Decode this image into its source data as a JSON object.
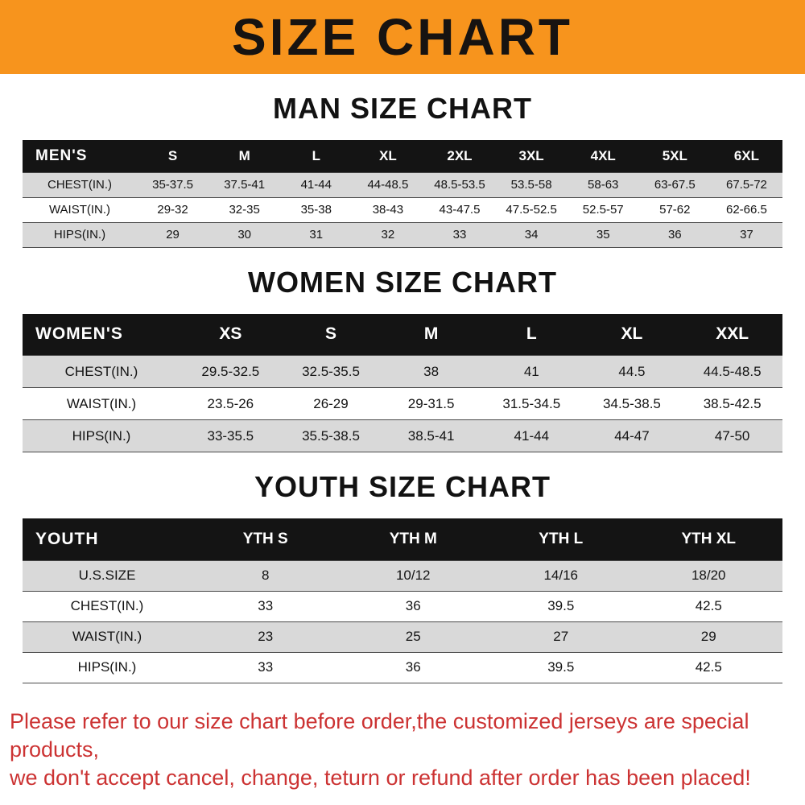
{
  "banner": {
    "title": "SIZE CHART"
  },
  "sections": [
    {
      "heading": "MAN SIZE CHART",
      "table": {
        "header": [
          "MEN'S",
          "S",
          "M",
          "L",
          "XL",
          "2XL",
          "3XL",
          "4XL",
          "5XL",
          "6XL"
        ],
        "rows": [
          [
            "CHEST(IN.)",
            "35-37.5",
            "37.5-41",
            "41-44",
            "44-48.5",
            "48.5-53.5",
            "53.5-58",
            "58-63",
            "63-67.5",
            "67.5-72"
          ],
          [
            "WAIST(IN.)",
            "29-32",
            "32-35",
            "35-38",
            "38-43",
            "43-47.5",
            "47.5-52.5",
            "52.5-57",
            "57-62",
            "62-66.5"
          ],
          [
            "HIPS(IN.)",
            "29",
            "30",
            "31",
            "32",
            "33",
            "34",
            "35",
            "36",
            "37"
          ]
        ]
      }
    },
    {
      "heading": "WOMEN SIZE CHART",
      "table": {
        "header": [
          "WOMEN'S",
          "XS",
          "S",
          "M",
          "L",
          "XL",
          "XXL"
        ],
        "rows": [
          [
            "CHEST(IN.)",
            "29.5-32.5",
            "32.5-35.5",
            "38",
            "41",
            "44.5",
            "44.5-48.5"
          ],
          [
            "WAIST(IN.)",
            "23.5-26",
            "26-29",
            "29-31.5",
            "31.5-34.5",
            "34.5-38.5",
            "38.5-42.5"
          ],
          [
            "HIPS(IN.)",
            "33-35.5",
            "35.5-38.5",
            "38.5-41",
            "41-44",
            "44-47",
            "47-50"
          ]
        ]
      }
    },
    {
      "heading": "YOUTH SIZE CHART",
      "table": {
        "header": [
          "YOUTH",
          "YTH S",
          "YTH M",
          "YTH L",
          "YTH XL"
        ],
        "rows": [
          [
            "U.S.SIZE",
            "8",
            "10/12",
            "14/16",
            "18/20"
          ],
          [
            "CHEST(IN.)",
            "33",
            "36",
            "39.5",
            "42.5"
          ],
          [
            "WAIST(IN.)",
            "23",
            "25",
            "27",
            "29"
          ],
          [
            "HIPS(IN.)",
            "33",
            "36",
            "39.5",
            "42.5"
          ]
        ]
      }
    }
  ],
  "footer": {
    "line1": "Please refer to our size chart before order,the customized jerseys are special products,",
    "line2": "we don't accept cancel, change, teturn or refund after order has been placed!"
  },
  "colors": {
    "banner-bg": "#f7941d",
    "table-header-bg": "#141414",
    "row-stripe": "#d9d9d9",
    "note-red": "#cc3333"
  }
}
